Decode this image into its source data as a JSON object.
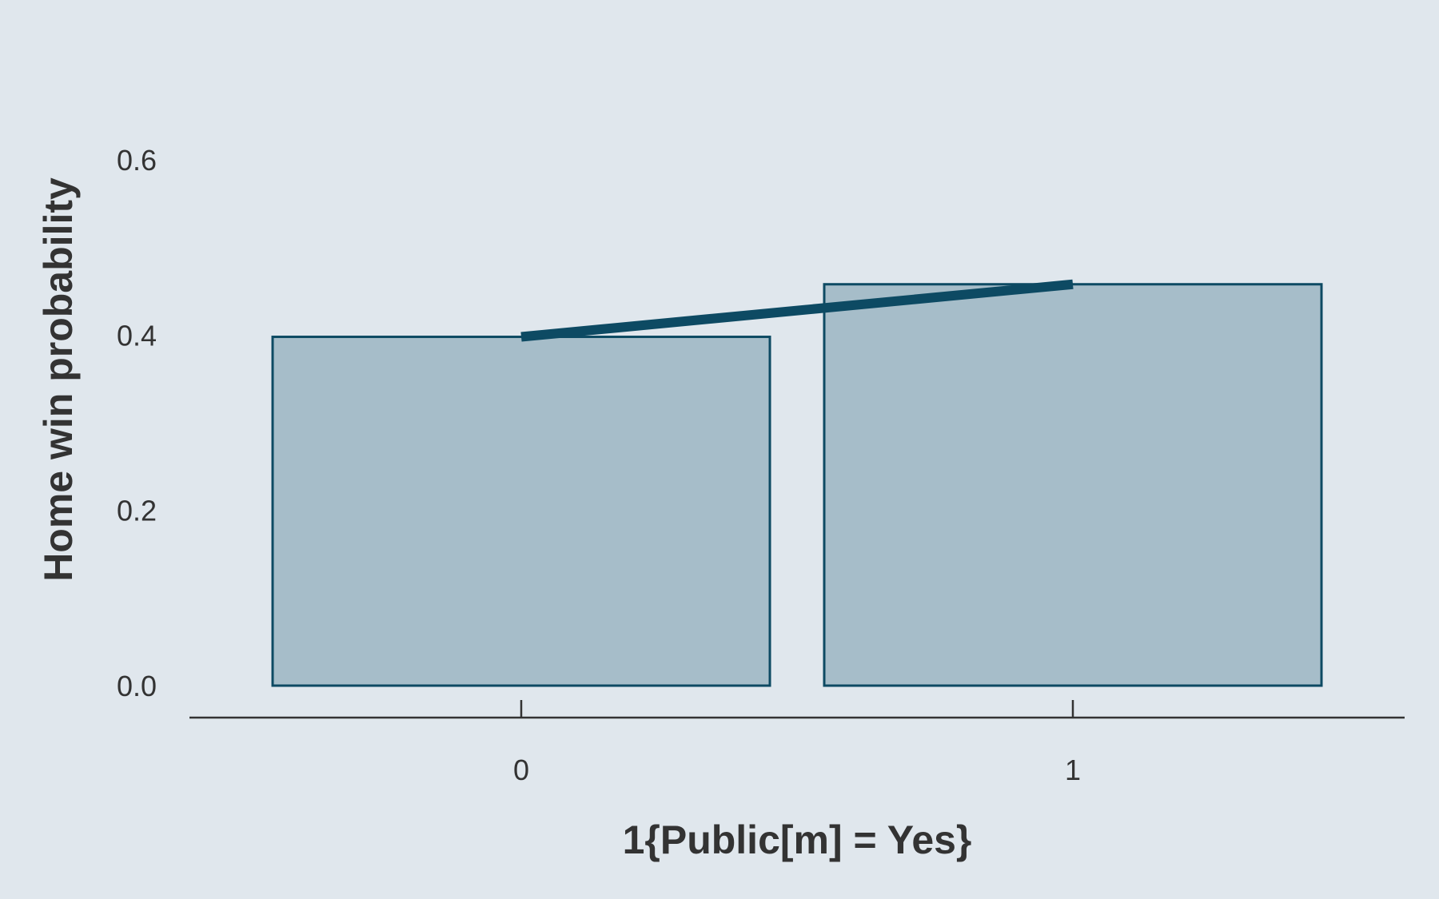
{
  "chart_data": {
    "type": "bar",
    "categories": [
      "0",
      "1"
    ],
    "values": [
      0.398,
      0.458
    ],
    "line_overlay": true,
    "xlabel": "1{Public[m] = Yes}",
    "ylabel": "Home win probability",
    "ylim": [
      0,
      0.6
    ],
    "yticks": [
      "0.0",
      "0.2",
      "0.4",
      "0.6"
    ],
    "grid": false,
    "colors": {
      "background": "#e0e7ed",
      "bar_fill": "#a6bdc9",
      "bar_stroke": "#0d4a63",
      "line": "#0d4a63",
      "axis": "#333333",
      "text": "#333333"
    }
  }
}
